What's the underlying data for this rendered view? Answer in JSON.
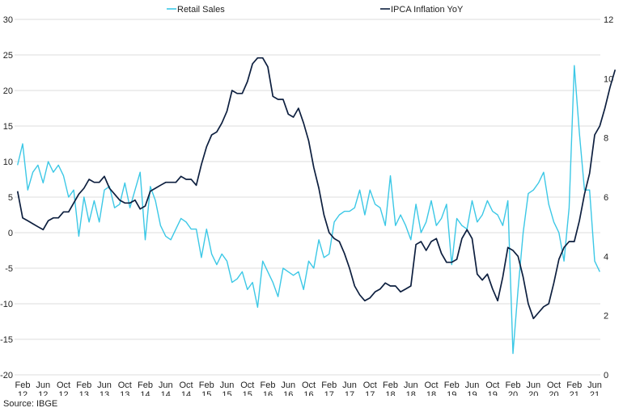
{
  "chart_data": {
    "type": "line",
    "x_labels": [
      {
        "month": "Feb",
        "year": "12"
      },
      {
        "month": "Jun",
        "year": "12"
      },
      {
        "month": "Oct",
        "year": "12"
      },
      {
        "month": "Feb",
        "year": "13"
      },
      {
        "month": "Jun",
        "year": "13"
      },
      {
        "month": "Oct",
        "year": "13"
      },
      {
        "month": "Feb",
        "year": "14"
      },
      {
        "month": "Jun",
        "year": "14"
      },
      {
        "month": "Oct",
        "year": "14"
      },
      {
        "month": "Feb",
        "year": "15"
      },
      {
        "month": "Jun",
        "year": "15"
      },
      {
        "month": "Oct",
        "year": "15"
      },
      {
        "month": "Feb",
        "year": "16"
      },
      {
        "month": "Jun",
        "year": "16"
      },
      {
        "month": "Oct",
        "year": "16"
      },
      {
        "month": "Feb",
        "year": "17"
      },
      {
        "month": "Jun",
        "year": "17"
      },
      {
        "month": "Oct",
        "year": "17"
      },
      {
        "month": "Feb",
        "year": "18"
      },
      {
        "month": "Jun",
        "year": "18"
      },
      {
        "month": "Oct",
        "year": "18"
      },
      {
        "month": "Feb",
        "year": "19"
      },
      {
        "month": "Jun",
        "year": "19"
      },
      {
        "month": "Oct",
        "year": "19"
      },
      {
        "month": "Feb",
        "year": "20"
      },
      {
        "month": "Jun",
        "year": "20"
      },
      {
        "month": "Oct",
        "year": "20"
      },
      {
        "month": "Feb",
        "year": "21"
      },
      {
        "month": "Jun",
        "year": "21"
      }
    ],
    "y_left": {
      "min": -20,
      "max": 30,
      "ticks": [
        30,
        25,
        20,
        15,
        10,
        5,
        0,
        -5,
        -10,
        -15,
        -20
      ]
    },
    "y_right": {
      "min": 0,
      "max": 12,
      "ticks": [
        12,
        10,
        8,
        6,
        4,
        2,
        0
      ]
    },
    "grid": "horizontal",
    "legend_position": "top",
    "series": [
      {
        "name": "Retail Sales",
        "axis": "left",
        "color": "#3cc8e6",
        "start": "2012-01",
        "values": [
          9.5,
          12.5,
          6.0,
          8.5,
          9.5,
          7.0,
          10.0,
          8.5,
          9.5,
          8.0,
          5.0,
          6.0,
          -0.5,
          5.0,
          1.5,
          4.5,
          1.5,
          6.0,
          6.5,
          3.5,
          4.0,
          7.0,
          3.5,
          6.0,
          8.5,
          -1.0,
          6.5,
          4.5,
          1.0,
          -0.5,
          -1.0,
          0.5,
          2.0,
          1.5,
          0.5,
          0.5,
          -3.5,
          0.5,
          -3.0,
          -4.5,
          -3.0,
          -4.0,
          -7.0,
          -6.5,
          -5.5,
          -8.0,
          -7.0,
          -10.5,
          -4.0,
          -5.5,
          -7.0,
          -9.0,
          -5.0,
          -5.5,
          -6.0,
          -5.5,
          -8.0,
          -4.0,
          -5.0,
          -1.0,
          -3.5,
          -3.0,
          1.5,
          2.5,
          3.0,
          3.0,
          3.5,
          6.0,
          2.5,
          6.0,
          4.0,
          3.5,
          1.0,
          8.0,
          1.0,
          2.5,
          1.0,
          -1.0,
          4.0,
          0.0,
          1.5,
          4.5,
          1.0,
          2.0,
          4.0,
          -4.5,
          2.0,
          1.0,
          0.5,
          4.5,
          1.5,
          2.5,
          4.5,
          3.0,
          2.5,
          1.0,
          4.5,
          -17.0,
          -8.0,
          0.0,
          5.5,
          6.0,
          7.0,
          8.5,
          4.0,
          1.5,
          0.0,
          -4.0,
          3.5,
          23.5,
          14.0,
          6.0,
          6.0,
          -4.0,
          -5.5
        ]
      },
      {
        "name": "IPCA Inflation YoY",
        "axis": "right",
        "color": "#0d1f3f",
        "start": "2012-01",
        "values": [
          6.2,
          5.3,
          5.2,
          5.1,
          5.0,
          4.9,
          5.2,
          5.3,
          5.3,
          5.5,
          5.5,
          5.8,
          6.1,
          6.3,
          6.6,
          6.5,
          6.5,
          6.7,
          6.3,
          6.1,
          5.9,
          5.8,
          5.8,
          5.9,
          5.6,
          5.7,
          6.2,
          6.3,
          6.4,
          6.5,
          6.5,
          6.5,
          6.7,
          6.6,
          6.6,
          6.4,
          7.1,
          7.7,
          8.1,
          8.2,
          8.5,
          8.9,
          9.6,
          9.5,
          9.5,
          9.9,
          10.5,
          10.7,
          10.7,
          10.4,
          9.4,
          9.3,
          9.3,
          8.8,
          8.7,
          9.0,
          8.5,
          7.9,
          7.0,
          6.3,
          5.4,
          4.8,
          4.6,
          4.5,
          4.1,
          3.6,
          3.0,
          2.7,
          2.5,
          2.6,
          2.8,
          2.9,
          3.1,
          3.0,
          3.0,
          2.8,
          2.9,
          3.0,
          4.4,
          4.5,
          4.2,
          4.5,
          4.6,
          4.1,
          3.8,
          3.8,
          3.9,
          4.6,
          4.9,
          4.6,
          3.4,
          3.2,
          3.4,
          2.9,
          2.5,
          3.3,
          4.3,
          4.2,
          4.0,
          3.3,
          2.4,
          1.9,
          2.1,
          2.3,
          2.4,
          3.1,
          3.9,
          4.3,
          4.5,
          4.5,
          5.2,
          6.1,
          6.8,
          8.1,
          8.4,
          9.0,
          9.7,
          10.3
        ]
      }
    ],
    "source": "Source: IBGE"
  }
}
